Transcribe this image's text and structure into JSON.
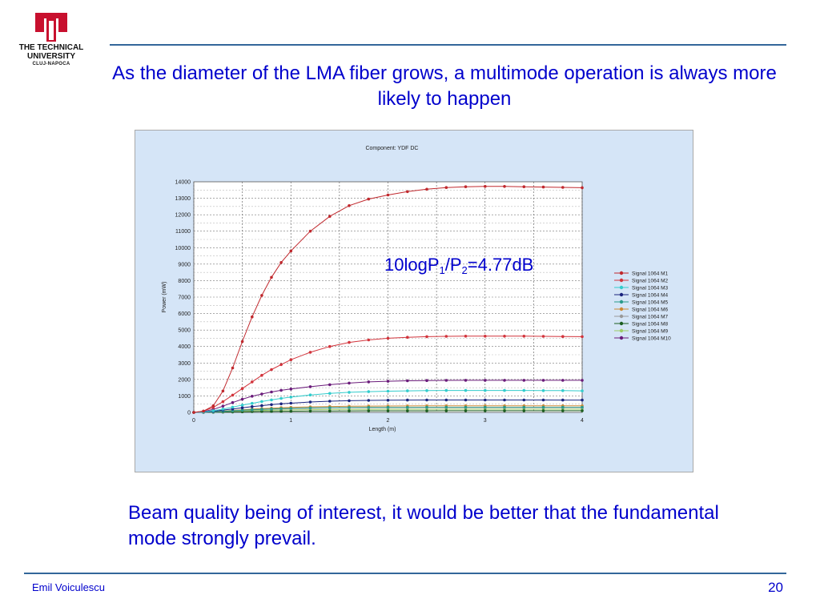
{
  "logo": {
    "line1": "THE TECHNICAL",
    "line2": "UNIVERSITY",
    "line3": "CLUJ-NAPOCA",
    "color": "#c8102e"
  },
  "title": "As the diameter of the LMA fiber grows, a multimode operation is always more likely to happen",
  "annotation": {
    "prefix": "10logP",
    "sub1": "1",
    "mid": "/P",
    "sub2": "2",
    "suffix": "=4.77dB"
  },
  "body_text": "Beam quality being of interest, it would be better that the fundamental mode strongly prevail.",
  "footer": {
    "author": "Emil Voiculescu",
    "page": "20"
  },
  "colors": {
    "text_blue": "#0000cc",
    "rule": "#33669a",
    "panel_bg": "#d5e5f7"
  },
  "chart_data": {
    "type": "line",
    "title": "Component: YDF DC",
    "xlabel": "Length (m)",
    "ylabel": "Power (mW)",
    "xlim": [
      0,
      4
    ],
    "ylim": [
      0,
      14000
    ],
    "x_ticks": [
      "0",
      "1",
      "2",
      "3",
      "4"
    ],
    "y_ticks": [
      "0",
      "1000",
      "2000",
      "3000",
      "4000",
      "5000",
      "6000",
      "7000",
      "8000",
      "9000",
      "10000",
      "11000",
      "12000",
      "13000",
      "14000"
    ],
    "grid": true,
    "legend_position": "right",
    "x": [
      0,
      0.1,
      0.2,
      0.3,
      0.4,
      0.5,
      0.6,
      0.7,
      0.8,
      0.9,
      1.0,
      1.2,
      1.4,
      1.6,
      1.8,
      2.0,
      2.2,
      2.4,
      2.6,
      2.8,
      3.0,
      3.2,
      3.4,
      3.6,
      3.8,
      4.0
    ],
    "series": [
      {
        "name": "Signal 1064 M1",
        "color": "#c0282d",
        "values": [
          0,
          80,
          400,
          1300,
          2700,
          4300,
          5800,
          7100,
          8200,
          9100,
          9800,
          11000,
          11900,
          12550,
          12950,
          13200,
          13400,
          13550,
          13650,
          13700,
          13720,
          13720,
          13700,
          13680,
          13660,
          13640
        ]
      },
      {
        "name": "Signal 1064 M2",
        "color": "#d2343c",
        "values": [
          0,
          80,
          300,
          650,
          1050,
          1450,
          1850,
          2250,
          2600,
          2900,
          3200,
          3650,
          4000,
          4250,
          4400,
          4500,
          4560,
          4600,
          4620,
          4630,
          4630,
          4630,
          4630,
          4620,
          4610,
          4600
        ]
      },
      {
        "name": "Signal 1064 M3",
        "color": "#33cccc",
        "values": [
          0,
          30,
          100,
          200,
          320,
          440,
          550,
          660,
          760,
          850,
          930,
          1060,
          1150,
          1220,
          1260,
          1290,
          1310,
          1320,
          1330,
          1330,
          1330,
          1330,
          1330,
          1320,
          1320,
          1310
        ]
      },
      {
        "name": "Signal 1064 M4",
        "color": "#1a237e",
        "values": [
          0,
          20,
          70,
          140,
          210,
          280,
          350,
          410,
          470,
          520,
          560,
          630,
          680,
          710,
          730,
          740,
          750,
          755,
          755,
          755,
          755,
          755,
          755,
          755,
          750,
          750
        ]
      },
      {
        "name": "Signal 1064 M5",
        "color": "#2a9a8a",
        "values": [
          0,
          10,
          35,
          70,
          100,
          135,
          165,
          190,
          210,
          230,
          245,
          270,
          285,
          295,
          300,
          305,
          308,
          310,
          310,
          310,
          310,
          310,
          310,
          310,
          310,
          310
        ]
      },
      {
        "name": "Signal 1064 M6",
        "color": "#cc8833",
        "values": [
          0,
          10,
          40,
          80,
          120,
          160,
          200,
          230,
          260,
          285,
          305,
          340,
          360,
          375,
          385,
          390,
          395,
          398,
          400,
          400,
          400,
          400,
          400,
          400,
          400,
          400
        ]
      },
      {
        "name": "Signal 1064 M7",
        "color": "#999999",
        "values": [
          0,
          8,
          30,
          60,
          90,
          120,
          150,
          175,
          195,
          210,
          225,
          250,
          265,
          275,
          280,
          285,
          288,
          290,
          290,
          290,
          290,
          290,
          290,
          290,
          290,
          290
        ]
      },
      {
        "name": "Signal 1064 M8",
        "color": "#1b5e20",
        "values": [
          0,
          3,
          10,
          20,
          30,
          40,
          50,
          58,
          65,
          70,
          75,
          82,
          88,
          92,
          95,
          97,
          98,
          99,
          100,
          100,
          100,
          100,
          100,
          100,
          100,
          100
        ]
      },
      {
        "name": "Signal 1064 M9",
        "color": "#9ccc65",
        "values": [
          0,
          6,
          20,
          40,
          60,
          80,
          100,
          115,
          130,
          140,
          150,
          165,
          175,
          182,
          186,
          189,
          191,
          192,
          193,
          193,
          193,
          193,
          193,
          193,
          193,
          193
        ]
      },
      {
        "name": "Signal 1064 M10",
        "color": "#6a1b7a",
        "values": [
          0,
          50,
          180,
          380,
          600,
          800,
          980,
          1120,
          1240,
          1340,
          1420,
          1560,
          1680,
          1780,
          1850,
          1890,
          1920,
          1935,
          1945,
          1950,
          1950,
          1950,
          1950,
          1950,
          1950,
          1950
        ]
      }
    ]
  }
}
